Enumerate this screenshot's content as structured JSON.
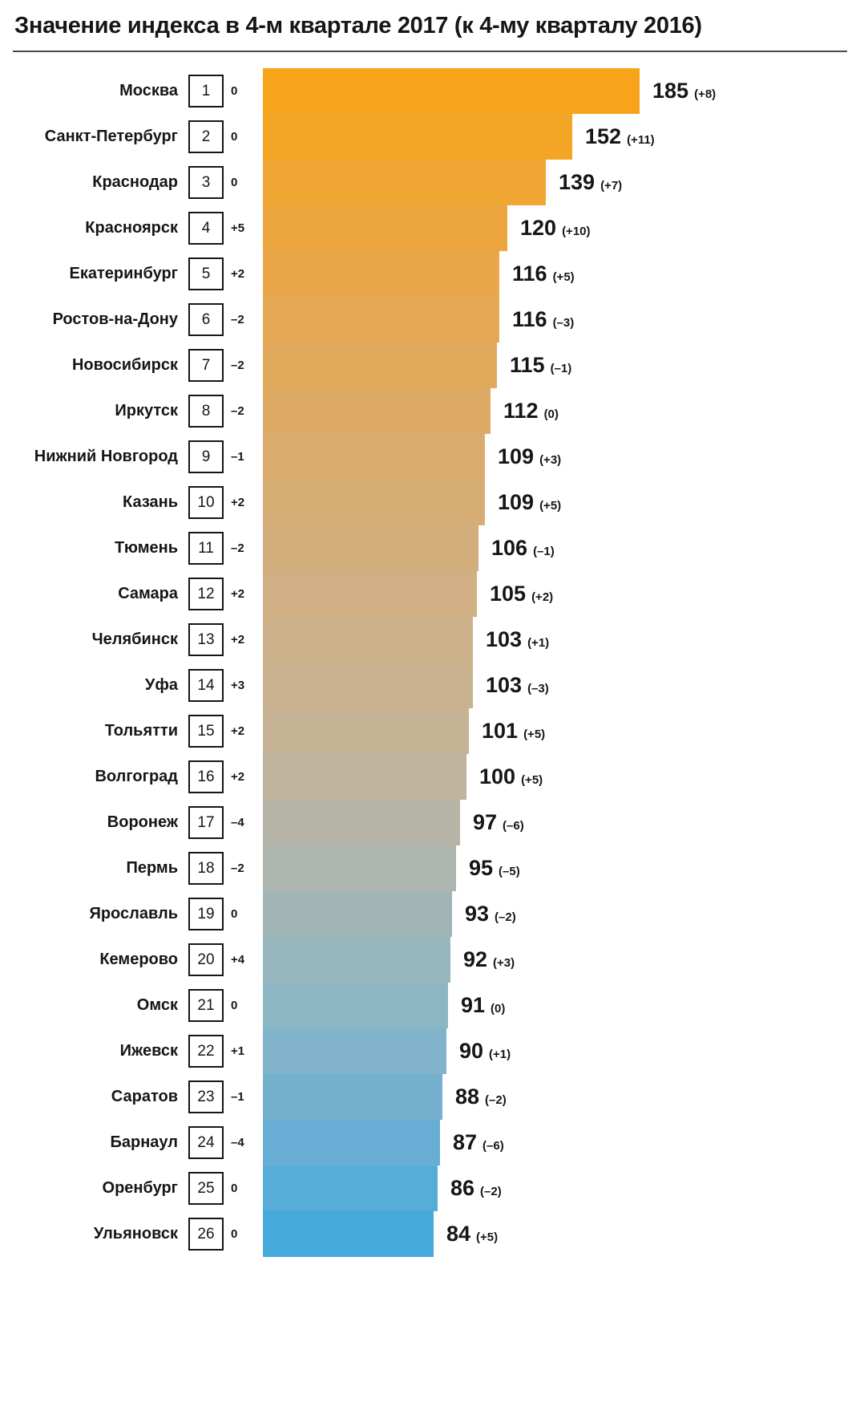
{
  "chart_data": {
    "type": "bar",
    "orientation": "horizontal",
    "title": "Значение индекса в 4-м квартале 2017 (к 4-му кварталу 2016)",
    "xlim": [
      0,
      185
    ],
    "grid": false,
    "legend": false,
    "categories": [
      "Москва",
      "Санкт-Петербург",
      "Краснодар",
      "Красноярск",
      "Екатеринбург",
      "Ростов-на-Дону",
      "Новосибирск",
      "Иркутск",
      "Нижний Новгород",
      "Казань",
      "Тюмень",
      "Самара",
      "Челябинск",
      "Уфа",
      "Тольятти",
      "Волгоград",
      "Воронеж",
      "Пермь",
      "Ярославль",
      "Кемерово",
      "Омск",
      "Ижевск",
      "Саратов",
      "Барнаул",
      "Оренбург",
      "Ульяновск"
    ],
    "values": [
      185,
      152,
      139,
      120,
      116,
      116,
      115,
      112,
      109,
      109,
      106,
      105,
      103,
      103,
      101,
      100,
      97,
      95,
      93,
      92,
      91,
      90,
      88,
      87,
      86,
      84
    ],
    "color_scale": {
      "top": "#F7A41B",
      "bottom": "#45A9DC"
    },
    "rows": [
      {
        "city": "Москва",
        "rank": "1",
        "rank_change": "0",
        "value": 185,
        "delta": "(+8)",
        "color": "#F7A41B"
      },
      {
        "city": "Санкт-Петербург",
        "rank": "2",
        "rank_change": "0",
        "value": 152,
        "delta": "(+11)",
        "color": "#F3A526"
      },
      {
        "city": "Краснодар",
        "rank": "3",
        "rank_change": "0",
        "value": 139,
        "delta": "(+7)",
        "color": "#F0A632"
      },
      {
        "city": "Красноярск",
        "rank": "4",
        "rank_change": "+5",
        "value": 120,
        "delta": "(+10)",
        "color": "#ECA63D"
      },
      {
        "city": "Екатеринбург",
        "rank": "5",
        "rank_change": "+2",
        "value": 116,
        "delta": "(+5)",
        "color": "#E9A749"
      },
      {
        "city": "Ростов-на-Дону",
        "rank": "6",
        "rank_change": "–2",
        "value": 116,
        "delta": "(–3)",
        "color": "#E5A854"
      },
      {
        "city": "Новосибирск",
        "rank": "7",
        "rank_change": "–2",
        "value": 115,
        "delta": "(–1)",
        "color": "#E1A95C"
      },
      {
        "city": "Иркутск",
        "rank": "8",
        "rank_change": "–2",
        "value": 112,
        "delta": "(0)",
        "color": "#DDAA64"
      },
      {
        "city": "Нижний Новгород",
        "rank": "9",
        "rank_change": "–1",
        "value": 109,
        "delta": "(+3)",
        "color": "#DAAC6D"
      },
      {
        "city": "Казань",
        "rank": "10",
        "rank_change": "+2",
        "value": 109,
        "delta": "(+5)",
        "color": "#D6AD75"
      },
      {
        "city": "Тюмень",
        "rank": "11",
        "rank_change": "–2",
        "value": 106,
        "delta": "(–1)",
        "color": "#D2AE7D"
      },
      {
        "city": "Самара",
        "rank": "12",
        "rank_change": "+2",
        "value": 105,
        "delta": "(+2)",
        "color": "#CFAF83"
      },
      {
        "city": "Челябинск",
        "rank": "13",
        "rank_change": "+2",
        "value": 103,
        "delta": "(+1)",
        "color": "#CCB089"
      },
      {
        "city": "Уфа",
        "rank": "14",
        "rank_change": "+3",
        "value": 103,
        "delta": "(–3)",
        "color": "#C9B18F"
      },
      {
        "city": "Тольятти",
        "rank": "15",
        "rank_change": "+2",
        "value": 101,
        "delta": "(+5)",
        "color": "#C6B295"
      },
      {
        "city": "Волгоград",
        "rank": "16",
        "rank_change": "+2",
        "value": 100,
        "delta": "(+5)",
        "color": "#BEB39D"
      },
      {
        "city": "Воронеж",
        "rank": "17",
        "rank_change": "–4",
        "value": 97,
        "delta": "(–6)",
        "color": "#B5B4A6"
      },
      {
        "city": "Пермь",
        "rank": "18",
        "rank_change": "–2",
        "value": 95,
        "delta": "(–5)",
        "color": "#ADB5AE"
      },
      {
        "city": "Ярославль",
        "rank": "19",
        "rank_change": "0",
        "value": 93,
        "delta": "(–2)",
        "color": "#A2B5B6"
      },
      {
        "city": "Кемерово",
        "rank": "20",
        "rank_change": "+4",
        "value": 92,
        "delta": "(+3)",
        "color": "#98B6BD"
      },
      {
        "city": "Омск",
        "rank": "21",
        "rank_change": "0",
        "value": 91,
        "delta": "(0)",
        "color": "#8DB6C5"
      },
      {
        "city": "Ижевск",
        "rank": "22",
        "rank_change": "+1",
        "value": 90,
        "delta": "(+1)",
        "color": "#81B3CA"
      },
      {
        "city": "Саратов",
        "rank": "23",
        "rank_change": "–1",
        "value": 88,
        "delta": "(–2)",
        "color": "#75B1CF"
      },
      {
        "city": "Барнаул",
        "rank": "24",
        "rank_change": "–4",
        "value": 87,
        "delta": "(–6)",
        "color": "#68AED4"
      },
      {
        "city": "Оренбург",
        "rank": "25",
        "rank_change": "0",
        "value": 86,
        "delta": "(–2)",
        "color": "#57ACD8"
      },
      {
        "city": "Ульяновск",
        "rank": "26",
        "rank_change": "0",
        "value": 84,
        "delta": "(+5)",
        "color": "#45A9DC"
      }
    ]
  }
}
